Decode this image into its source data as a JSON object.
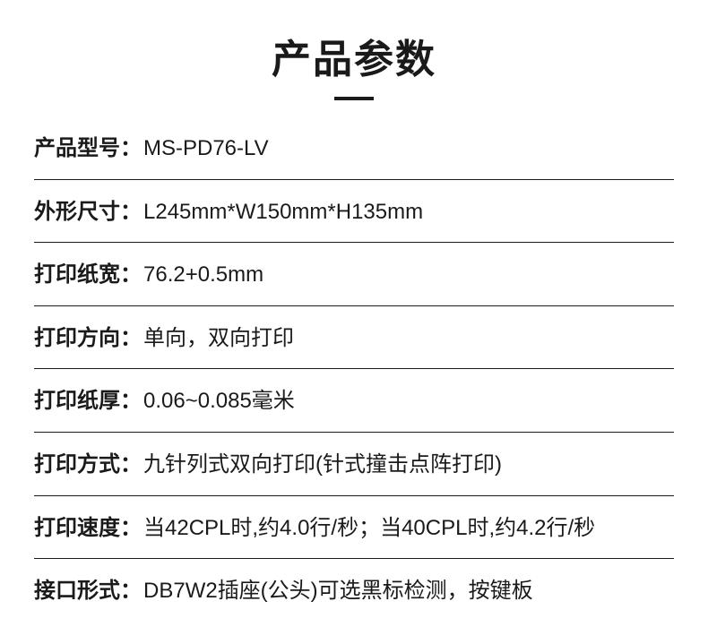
{
  "title": "产品参数",
  "title_fontsize": 44,
  "title_fontweight": 700,
  "underline_width": 44,
  "underline_height": 4,
  "text_color": "#1a1a1a",
  "background_color": "#ffffff",
  "divider_color": "#1a1a1a",
  "row_fontsize": 24,
  "label_fontweight": 700,
  "value_fontweight": 400,
  "specs": [
    {
      "label": "产品型号：",
      "value": "MS-PD76-LV"
    },
    {
      "label": "外形尺寸：",
      "value": "L245mm*W150mm*H135mm"
    },
    {
      "label": "打印纸宽：",
      "value": "76.2+0.5mm"
    },
    {
      "label": "打印方向：",
      "value": "单向，双向打印"
    },
    {
      "label": "打印纸厚：",
      "value": "0.06~0.085毫米"
    },
    {
      "label": "打印方式：",
      "value": "九针列式双向打印(针式撞击点阵打印)"
    },
    {
      "label": "打印速度：",
      "value": "当42CPL时,约4.0行/秒；当40CPL时,约4.2行/秒"
    },
    {
      "label": "接口形式：",
      "value": "DB7W2插座(公头)可选黑标检测，按键板"
    }
  ]
}
